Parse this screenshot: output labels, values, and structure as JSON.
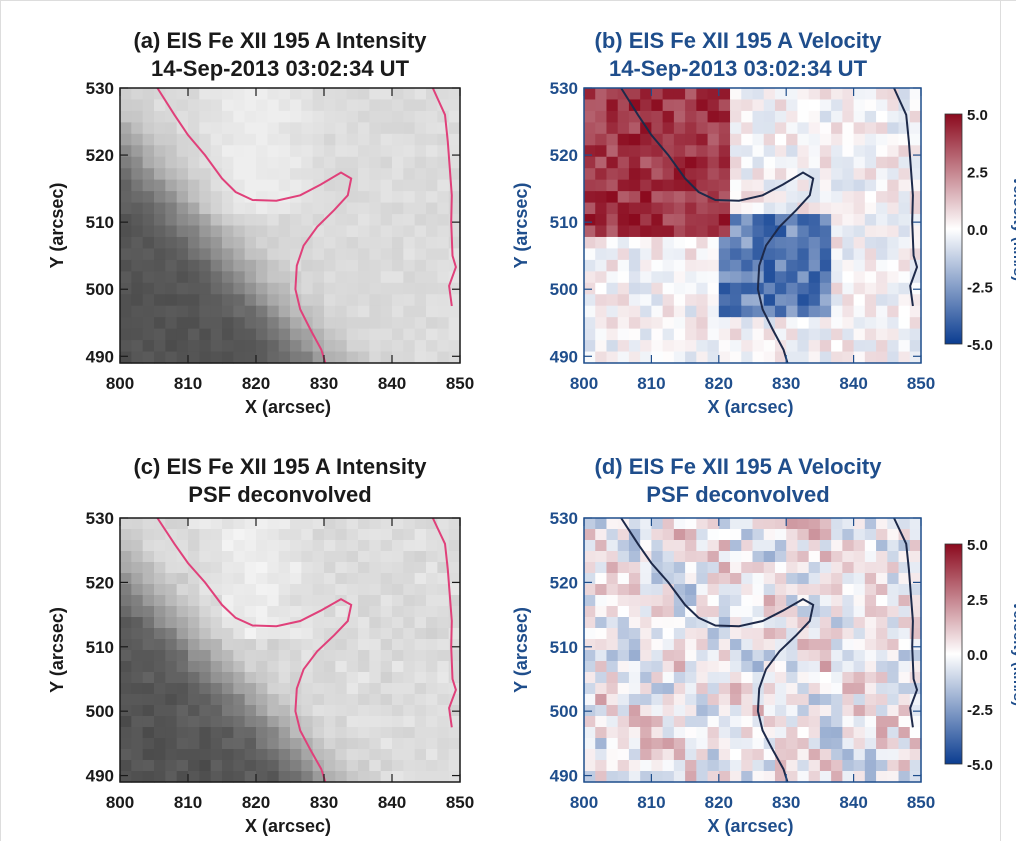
{
  "colors": {
    "black_text": "#1a1a1a",
    "blue_text": "#1f4e8c",
    "contour_magenta": "#e0407a",
    "contour_dark": "#1e2a4a",
    "vel_red": "#8b0a1e",
    "vel_blue": "#0b3d91",
    "white": "#ffffff"
  },
  "chart_data": [
    {
      "id": "a",
      "type": "heatmap",
      "variable": "intensity",
      "title": "(a) EIS Fe XII 195 A Intensity",
      "subtitle": "14-Sep-2013 03:02:34 UT",
      "xlabel": "X (arcsec)",
      "ylabel": "Y (arcsec)",
      "xlim": [
        800,
        850
      ],
      "ylim": [
        489,
        530
      ],
      "xticks": [
        "800",
        "810",
        "820",
        "830",
        "840",
        "850"
      ],
      "yticks": [
        "530",
        "520",
        "510",
        "500",
        "490"
      ],
      "text_color": "black",
      "contour_color": "magenta",
      "colormap": "grayscale"
    },
    {
      "id": "b",
      "type": "heatmap",
      "variable": "velocity",
      "title": "(b) EIS Fe XII 195 A Velocity",
      "subtitle": "14-Sep-2013 03:02:34 UT",
      "xlabel": "X (arcsec)",
      "ylabel": "Y (arcsec)",
      "xlim": [
        800,
        850
      ],
      "ylim": [
        489,
        530
      ],
      "xticks": [
        "800",
        "810",
        "820",
        "830",
        "840",
        "850"
      ],
      "yticks": [
        "530",
        "520",
        "510",
        "500",
        "490"
      ],
      "text_color": "blue",
      "contour_color": "dark",
      "colormap": "red-white-blue",
      "colorbar": {
        "label": "velocity (km/s)",
        "ticks": [
          "5.0",
          "2.5",
          "0.0",
          "-2.5",
          "-5.0"
        ],
        "range": [
          -5,
          5
        ]
      }
    },
    {
      "id": "c",
      "type": "heatmap",
      "variable": "intensity",
      "title": "(c) EIS Fe XII 195 A Intensity",
      "subtitle": "PSF deconvolved",
      "xlabel": "X (arcsec)",
      "ylabel": "Y (arcsec)",
      "xlim": [
        800,
        850
      ],
      "ylim": [
        489,
        530
      ],
      "xticks": [
        "800",
        "810",
        "820",
        "830",
        "840",
        "850"
      ],
      "yticks": [
        "530",
        "520",
        "510",
        "500",
        "490"
      ],
      "text_color": "black",
      "contour_color": "magenta",
      "colormap": "grayscale"
    },
    {
      "id": "d",
      "type": "heatmap",
      "variable": "velocity",
      "title": "(d) EIS Fe XII 195 A Velocity",
      "subtitle": "PSF deconvolved",
      "xlabel": "X (arcsec)",
      "ylabel": "Y (arcsec)",
      "xlim": [
        800,
        850
      ],
      "ylim": [
        489,
        530
      ],
      "xticks": [
        "800",
        "810",
        "820",
        "830",
        "840",
        "850"
      ],
      "yticks": [
        "530",
        "520",
        "510",
        "500",
        "490"
      ],
      "text_color": "blue",
      "contour_color": "dark",
      "colormap": "red-white-blue",
      "colorbar": {
        "label": "velocity (km/s)",
        "ticks": [
          "5.0",
          "2.5",
          "0.0",
          "-2.5",
          "-5.0"
        ],
        "range": [
          -5,
          5
        ]
      }
    }
  ]
}
